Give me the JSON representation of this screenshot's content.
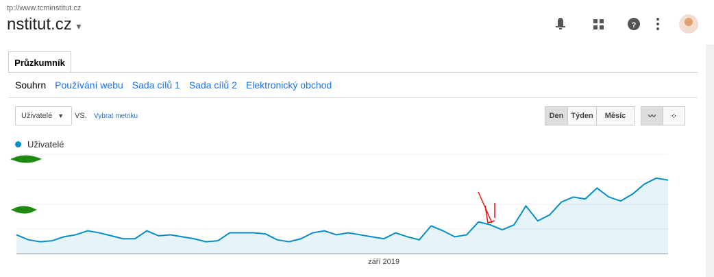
{
  "header": {
    "url": "tp://www.tcminstitut.cz",
    "site": "nstitut.cz"
  },
  "tab": "Průzkumník",
  "nav": [
    "Souhrn",
    "Používání webu",
    "Sada cílů 1",
    "Sada cílů 2",
    "Elektronický obchod"
  ],
  "controls": {
    "metric": "Uživatelé",
    "vs": "VS.",
    "pick": "Vybrat metriku",
    "periods": [
      "Den",
      "Týden",
      "Měsíc"
    ]
  },
  "chart_data": {
    "type": "line",
    "categories": [
      null,
      null,
      null,
      null,
      null,
      null,
      null,
      null,
      null,
      null,
      null,
      null,
      null,
      null,
      null,
      null,
      null,
      null,
      null,
      null,
      null,
      null,
      null,
      null,
      null,
      null,
      null,
      null,
      null,
      null,
      null,
      "září 2019",
      null,
      null,
      null,
      null,
      null,
      null,
      null,
      null,
      null,
      null,
      null,
      null,
      null,
      null,
      null,
      null,
      null,
      null,
      null,
      null,
      null,
      null,
      null,
      null
    ],
    "series": [
      {
        "name": "Uživatelé",
        "color": "#058dc7",
        "values": [
          19,
          14,
          12,
          13,
          17,
          19,
          23,
          21,
          18,
          15,
          15,
          23,
          18,
          19,
          17,
          15,
          12,
          13,
          21,
          21,
          21,
          20,
          14,
          12,
          15,
          21,
          23,
          19,
          21,
          19,
          17,
          15,
          21,
          17,
          14,
          28,
          23,
          17,
          19,
          32,
          29,
          24,
          29,
          48,
          33,
          39,
          52,
          57,
          55,
          66,
          57,
          53,
          60,
          70,
          76,
          74
        ]
      }
    ],
    "ylim": [
      0,
      100
    ]
  }
}
